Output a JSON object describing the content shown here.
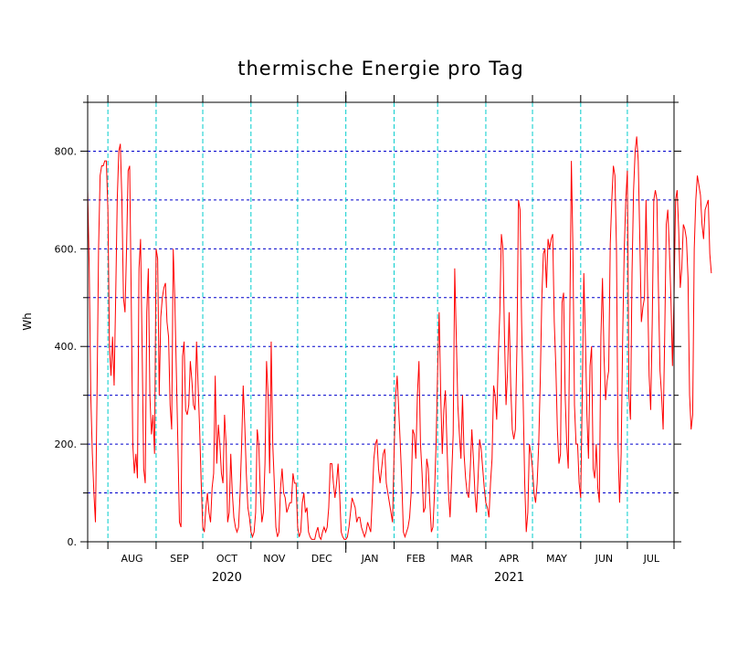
{
  "chart_data": {
    "type": "line",
    "title": "thermische Energie pro Tag",
    "ylabel": "Wh",
    "ylim": [
      0,
      900
    ],
    "yticks": [
      0,
      200,
      400,
      600,
      800
    ],
    "ytick_labels": [
      "0.",
      "200.",
      "400.",
      "600.",
      "800."
    ],
    "xlim": [
      "2020-07-19",
      "2021-07-31"
    ],
    "month_boundaries": [
      "2020-08-01",
      "2020-09-01",
      "2020-10-01",
      "2020-11-01",
      "2020-12-01",
      "2021-01-01",
      "2021-02-01",
      "2021-03-01",
      "2021-04-01",
      "2021-05-01",
      "2021-06-01",
      "2021-07-01"
    ],
    "month_labels": [
      "AUG",
      "SEP",
      "OCT",
      "NOV",
      "DEC",
      "JAN",
      "FEB",
      "MAR",
      "APR",
      "MAY",
      "JUN",
      "JUL"
    ],
    "year_labels": [
      "2020",
      "2021"
    ],
    "grid": {
      "horizontal": "dashed blue",
      "vertical": "dashed cyan"
    },
    "colors": {
      "line": "#ff0000",
      "hgrid": "#0000cc",
      "vgrid": "#00cccc"
    },
    "series": [
      {
        "x_start": "2020-07-19",
        "step_days": 1,
        "values": [
          720,
          560,
          300,
          180,
          100,
          40,
          300,
          600,
          750,
          770,
          770,
          780,
          780,
          680,
          400,
          340,
          420,
          320,
          500,
          700,
          800,
          815,
          700,
          500,
          470,
          600,
          760,
          770,
          500,
          200,
          140,
          180,
          130,
          560,
          620,
          400,
          150,
          120,
          470,
          560,
          300,
          220,
          260,
          180,
          600,
          580,
          300,
          460,
          500,
          520,
          530,
          450,
          420,
          280,
          230,
          600,
          500,
          350,
          200,
          40,
          30,
          380,
          410,
          270,
          260,
          280,
          370,
          330,
          280,
          270,
          410,
          320,
          230,
          120,
          30,
          20,
          70,
          100,
          60,
          40,
          110,
          140,
          340,
          160,
          240,
          200,
          140,
          120,
          260,
          200,
          40,
          60,
          180,
          100,
          50,
          30,
          20,
          30,
          100,
          200,
          320,
          240,
          140,
          70,
          50,
          20,
          10,
          20,
          60,
          230,
          200,
          100,
          40,
          60,
          160,
          370,
          300,
          140,
          410,
          200,
          120,
          30,
          10,
          20,
          110,
          150,
          100,
          90,
          60,
          70,
          80,
          80,
          140,
          120,
          120,
          30,
          10,
          20,
          80,
          100,
          60,
          70,
          20,
          10,
          5,
          5,
          5,
          20,
          30,
          10,
          5,
          20,
          30,
          20,
          30,
          70,
          160,
          160,
          120,
          90,
          120,
          160,
          100,
          20,
          10,
          5,
          5,
          10,
          30,
          60,
          90,
          80,
          70,
          40,
          50,
          50,
          30,
          20,
          10,
          20,
          40,
          30,
          20,
          90,
          170,
          200,
          210,
          150,
          120,
          150,
          180,
          190,
          120,
          100,
          80,
          60,
          40,
          180,
          300,
          340,
          270,
          200,
          120,
          20,
          10,
          20,
          30,
          50,
          100,
          230,
          220,
          170,
          300,
          370,
          200,
          140,
          60,
          70,
          170,
          150,
          80,
          20,
          30,
          100,
          200,
          350,
          470,
          300,
          180,
          270,
          310,
          200,
          100,
          50,
          130,
          220,
          560,
          420,
          280,
          220,
          170,
          300,
          180,
          130,
          100,
          90,
          150,
          230,
          170,
          100,
          60,
          130,
          210,
          190,
          150,
          110,
          80,
          70,
          50,
          120,
          170,
          320,
          300,
          250,
          380,
          470,
          630,
          600,
          420,
          280,
          350,
          470,
          320,
          230,
          210,
          230,
          400,
          700,
          680,
          450,
          290,
          120,
          20,
          60,
          200,
          180,
          150,
          100,
          80,
          120,
          200,
          330,
          500,
          590,
          600,
          520,
          620,
          600,
          620,
          630,
          450,
          360,
          230,
          160,
          180,
          490,
          510,
          300,
          200,
          150,
          460,
          780,
          600,
          280,
          200,
          200,
          120,
          90,
          300,
          550,
          420,
          260,
          170,
          360,
          400,
          150,
          130,
          200,
          110,
          80,
          420,
          540,
          380,
          290,
          330,
          350,
          610,
          700,
          770,
          750,
          600,
          200,
          80,
          180,
          420,
          600,
          700,
          760,
          300,
          250,
          550,
          720,
          800,
          830,
          780,
          620,
          450,
          480,
          500,
          700,
          520,
          340,
          270,
          450,
          700,
          720,
          700,
          510,
          350,
          300,
          230,
          420,
          650,
          680,
          600,
          500,
          360,
          500,
          700,
          720,
          640,
          520,
          560,
          650,
          640,
          620,
          540,
          300,
          230,
          260,
          600,
          700,
          750,
          730,
          710,
          650,
          620,
          680,
          690,
          700,
          590,
          550
        ]
      }
    ]
  }
}
